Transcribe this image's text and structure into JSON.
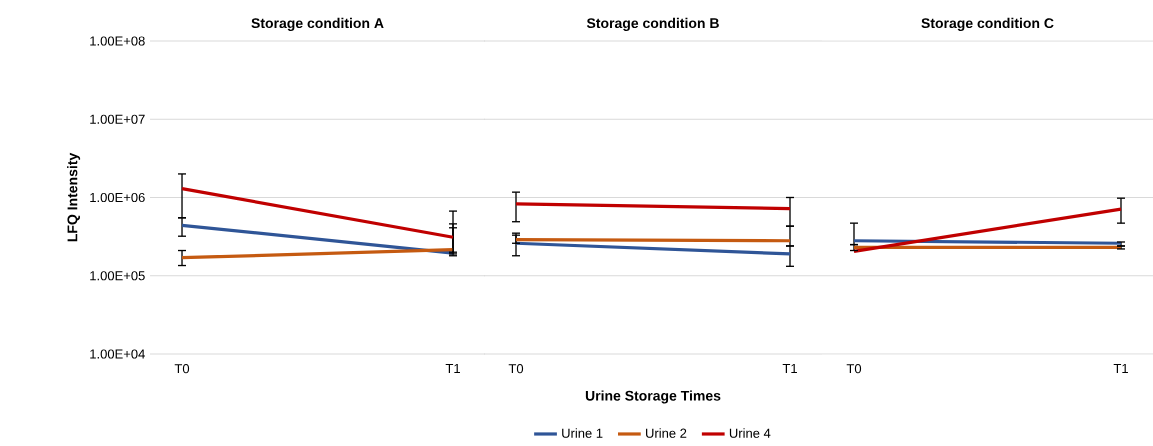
{
  "chart_data": [
    {
      "type": "line",
      "title": "Storage condition A",
      "ylabel": "LFQ Intensity",
      "categories": [
        "T0",
        "T1"
      ],
      "log": "y",
      "grid": "y",
      "ylim": [
        10000,
        100000000
      ],
      "yticks": [
        {
          "value": 10000,
          "label": "1.00E+04"
        },
        {
          "value": 100000,
          "label": "1.00E+05"
        },
        {
          "value": 1000000,
          "label": "1.00E+06"
        },
        {
          "value": 10000000,
          "label": "1.00E+07"
        },
        {
          "value": 100000000,
          "label": "1.00E+08"
        }
      ],
      "series": [
        {
          "color": "#2f5597",
          "values": [
            440000,
            195000
          ],
          "errors": [
            [
              320000,
              550000
            ],
            [
              180000,
              410000
            ]
          ]
        },
        {
          "color": "#c55a11",
          "values": [
            170000,
            215000
          ],
          "errors": [
            [
              135000,
              210000
            ],
            [
              200000,
              460000
            ]
          ]
        },
        {
          "color": "#c00000",
          "values": [
            1300000,
            310000
          ],
          "errors": [
            [
              550000,
              2000000
            ],
            [
              190000,
              670000
            ]
          ]
        }
      ]
    },
    {
      "type": "line",
      "title": "Storage condition B",
      "xlabel": "Urine Storage Times",
      "categories": [
        "T0",
        "T1"
      ],
      "log": "y",
      "grid": "y",
      "ylim": [
        10000,
        100000000
      ],
      "tick_labels": "x",
      "legend": "bottom",
      "series": [
        {
          "name": "Urine 1",
          "color": "#2f5597",
          "values": [
            260000,
            190000
          ],
          "errors": [
            [
              180000,
              330000
            ],
            [
              132000,
              240000
            ]
          ]
        },
        {
          "name": "Urine 2",
          "color": "#c55a11",
          "values": [
            290000,
            280000
          ],
          "errors": [
            [
              260000,
              350000
            ],
            [
              240000,
              430000
            ]
          ]
        },
        {
          "name": "Urine 4",
          "color": "#c00000",
          "values": [
            830000,
            720000
          ],
          "errors": [
            [
              490000,
              1170000
            ],
            [
              430000,
              1000000
            ]
          ]
        }
      ]
    },
    {
      "type": "line",
      "title": "Storage condition C",
      "categories": [
        "T0",
        "T1"
      ],
      "log": "y",
      "grid": "y",
      "ylim": [
        10000,
        100000000
      ],
      "tick_labels": "x",
      "series": [
        {
          "color": "#2f5597",
          "values": [
            280000,
            260000
          ],
          "errors": [
            [
              250000,
              470000
            ],
            [
              240000,
              270000
            ]
          ]
        },
        {
          "color": "#c55a11",
          "values": [
            230000,
            230000
          ],
          "errors": [
            [
              210000,
              250000
            ],
            [
              220000,
              240000
            ]
          ]
        },
        {
          "color": "#c00000",
          "values": [
            205000,
            710000
          ],
          "errors": [
            null,
            [
              470000,
              980000
            ]
          ]
        }
      ]
    }
  ]
}
